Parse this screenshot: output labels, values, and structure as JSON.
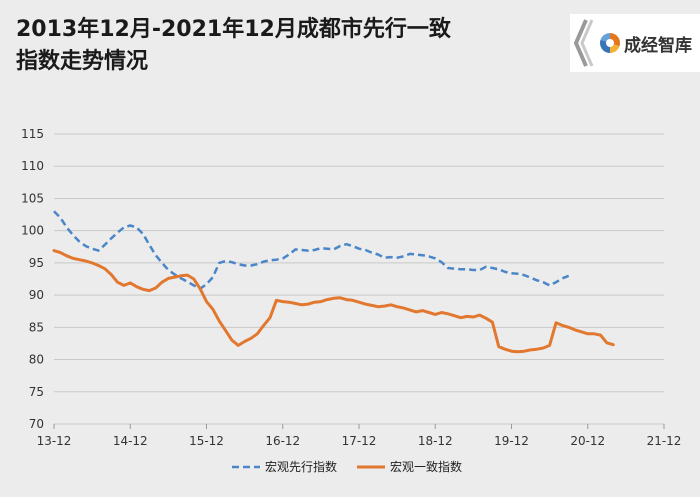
{
  "title": {
    "line1": "2013年12月-2021年12月成都市先行一致",
    "line2": "指数走势情况"
  },
  "brand": {
    "name": "成经智库"
  },
  "chart_data": {
    "type": "line",
    "ylim": [
      70,
      115
    ],
    "yticks": [
      70,
      75,
      80,
      85,
      90,
      95,
      100,
      105,
      110,
      115
    ],
    "xlim": [
      0,
      96
    ],
    "xticks": [
      {
        "x": 0,
        "label": "13-12"
      },
      {
        "x": 12,
        "label": "14-12"
      },
      {
        "x": 24,
        "label": "15-12"
      },
      {
        "x": 36,
        "label": "16-12"
      },
      {
        "x": 48,
        "label": "17-12"
      },
      {
        "x": 60,
        "label": "18-12"
      },
      {
        "x": 72,
        "label": "19-12"
      },
      {
        "x": 84,
        "label": "20-12"
      },
      {
        "x": 96,
        "label": "21-12"
      }
    ],
    "grid": true,
    "legend_position": "bottom",
    "series": [
      {
        "name": "宏观先行指数",
        "color": "#4a86c8",
        "style": "dashed",
        "points": [
          [
            0,
            103.0
          ],
          [
            1,
            102.0
          ],
          [
            2,
            100.5
          ],
          [
            3,
            99.3
          ],
          [
            4,
            98.3
          ],
          [
            5,
            97.6
          ],
          [
            6,
            97.2
          ],
          [
            7,
            96.9
          ],
          [
            8,
            97.8
          ],
          [
            9,
            98.8
          ],
          [
            10,
            99.7
          ],
          [
            11,
            100.5
          ],
          [
            12,
            100.8
          ],
          [
            13,
            100.5
          ],
          [
            14,
            99.5
          ],
          [
            15,
            97.8
          ],
          [
            16,
            96.2
          ],
          [
            17,
            95.0
          ],
          [
            18,
            93.9
          ],
          [
            19,
            93.2
          ],
          [
            20,
            92.6
          ],
          [
            21,
            92.1
          ],
          [
            22,
            91.5
          ],
          [
            23,
            91.0
          ],
          [
            24,
            91.7
          ],
          [
            25,
            92.8
          ],
          [
            26,
            95.0
          ],
          [
            27,
            95.3
          ],
          [
            28,
            95.1
          ],
          [
            29,
            94.8
          ],
          [
            30,
            94.6
          ],
          [
            31,
            94.6
          ],
          [
            32,
            94.8
          ],
          [
            33,
            95.2
          ],
          [
            34,
            95.4
          ],
          [
            35,
            95.5
          ],
          [
            36,
            95.7
          ],
          [
            37,
            96.3
          ],
          [
            38,
            97.1
          ],
          [
            39,
            97.0
          ],
          [
            40,
            96.9
          ],
          [
            41,
            97.0
          ],
          [
            42,
            97.3
          ],
          [
            43,
            97.2
          ],
          [
            44,
            97.1
          ],
          [
            45,
            97.6
          ],
          [
            46,
            97.9
          ],
          [
            47,
            97.6
          ],
          [
            48,
            97.2
          ],
          [
            49,
            97.0
          ],
          [
            50,
            96.6
          ],
          [
            51,
            96.3
          ],
          [
            52,
            95.8
          ],
          [
            53,
            95.9
          ],
          [
            54,
            95.8
          ],
          [
            55,
            96.0
          ],
          [
            56,
            96.4
          ],
          [
            57,
            96.3
          ],
          [
            58,
            96.2
          ],
          [
            59,
            96.0
          ],
          [
            60,
            95.7
          ],
          [
            61,
            95.1
          ],
          [
            62,
            94.2
          ],
          [
            63,
            94.1
          ],
          [
            64,
            94.0
          ],
          [
            65,
            94.0
          ],
          [
            66,
            93.9
          ],
          [
            67,
            93.9
          ],
          [
            68,
            94.4
          ],
          [
            69,
            94.2
          ],
          [
            70,
            94.0
          ],
          [
            71,
            93.6
          ],
          [
            72,
            93.4
          ],
          [
            73,
            93.3
          ],
          [
            74,
            93.1
          ],
          [
            75,
            92.7
          ],
          [
            76,
            92.3
          ],
          [
            77,
            92.0
          ],
          [
            78,
            91.5
          ],
          [
            79,
            92.0
          ],
          [
            80,
            92.6
          ],
          [
            81,
            93.0
          ]
        ]
      },
      {
        "name": "宏观一致指数",
        "color": "#e2782f",
        "style": "solid",
        "points": [
          [
            0,
            96.9
          ],
          [
            1,
            96.6
          ],
          [
            2,
            96.1
          ],
          [
            3,
            95.7
          ],
          [
            4,
            95.5
          ],
          [
            5,
            95.3
          ],
          [
            6,
            95.0
          ],
          [
            7,
            94.6
          ],
          [
            8,
            94.1
          ],
          [
            9,
            93.2
          ],
          [
            10,
            92.0
          ],
          [
            11,
            91.5
          ],
          [
            12,
            91.9
          ],
          [
            13,
            91.3
          ],
          [
            14,
            90.9
          ],
          [
            15,
            90.7
          ],
          [
            16,
            91.1
          ],
          [
            17,
            92.0
          ],
          [
            18,
            92.6
          ],
          [
            19,
            92.8
          ],
          [
            20,
            93.0
          ],
          [
            21,
            93.1
          ],
          [
            22,
            92.5
          ],
          [
            23,
            91.0
          ],
          [
            24,
            89.0
          ],
          [
            25,
            87.8
          ],
          [
            26,
            86.0
          ],
          [
            27,
            84.5
          ],
          [
            28,
            83.0
          ],
          [
            29,
            82.2
          ],
          [
            30,
            82.8
          ],
          [
            31,
            83.3
          ],
          [
            32,
            84.0
          ],
          [
            33,
            85.3
          ],
          [
            34,
            86.5
          ],
          [
            35,
            89.2
          ],
          [
            36,
            89.0
          ],
          [
            37,
            88.9
          ],
          [
            38,
            88.7
          ],
          [
            39,
            88.5
          ],
          [
            40,
            88.6
          ],
          [
            41,
            88.9
          ],
          [
            42,
            89.0
          ],
          [
            43,
            89.3
          ],
          [
            44,
            89.5
          ],
          [
            45,
            89.6
          ],
          [
            46,
            89.3
          ],
          [
            47,
            89.2
          ],
          [
            48,
            88.9
          ],
          [
            49,
            88.6
          ],
          [
            50,
            88.4
          ],
          [
            51,
            88.2
          ],
          [
            52,
            88.3
          ],
          [
            53,
            88.5
          ],
          [
            54,
            88.2
          ],
          [
            55,
            88.0
          ],
          [
            56,
            87.7
          ],
          [
            57,
            87.4
          ],
          [
            58,
            87.6
          ],
          [
            59,
            87.3
          ],
          [
            60,
            87.0
          ],
          [
            61,
            87.3
          ],
          [
            62,
            87.1
          ],
          [
            63,
            86.8
          ],
          [
            64,
            86.5
          ],
          [
            65,
            86.7
          ],
          [
            66,
            86.6
          ],
          [
            67,
            86.9
          ],
          [
            68,
            86.4
          ],
          [
            69,
            85.8
          ],
          [
            70,
            82.0
          ],
          [
            71,
            81.6
          ],
          [
            72,
            81.3
          ],
          [
            73,
            81.2
          ],
          [
            74,
            81.3
          ],
          [
            75,
            81.5
          ],
          [
            76,
            81.6
          ],
          [
            77,
            81.8
          ],
          [
            78,
            82.2
          ],
          [
            79,
            85.7
          ],
          [
            80,
            85.3
          ],
          [
            81,
            85.0
          ],
          [
            82,
            84.6
          ],
          [
            83,
            84.3
          ],
          [
            84,
            84.0
          ],
          [
            85,
            84.0
          ],
          [
            86,
            83.8
          ],
          [
            87,
            82.6
          ],
          [
            88,
            82.3
          ]
        ]
      }
    ]
  }
}
